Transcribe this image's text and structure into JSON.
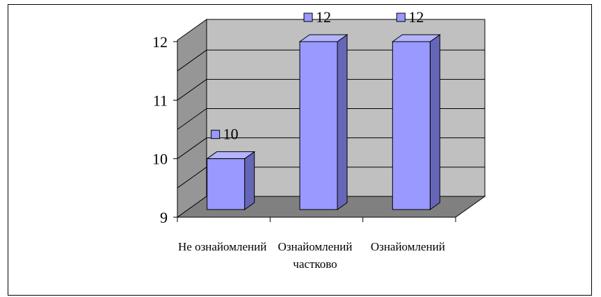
{
  "chart_data": {
    "type": "bar",
    "style": "3d-column",
    "categories": [
      [
        "Не ознайомлений"
      ],
      [
        "Ознайомлений",
        "частково"
      ],
      [
        "Ознайомлений"
      ]
    ],
    "values": [
      10,
      12,
      12
    ],
    "data_labels": [
      "10",
      "12",
      "12"
    ],
    "ylim": [
      9,
      12
    ],
    "yticks": [
      9,
      10,
      11,
      12
    ],
    "ytick_labels": [
      "9",
      "10",
      "11",
      "12"
    ],
    "grid": true,
    "legend": "none",
    "colors": {
      "bar_front": "#9999ff",
      "bar_side": "#6666b8",
      "bar_top": "#b4b4ff",
      "back_wall": "#c0c0c0",
      "side_wall": "#969696",
      "floor": "#808080",
      "label_marker": "#9999ff"
    }
  }
}
